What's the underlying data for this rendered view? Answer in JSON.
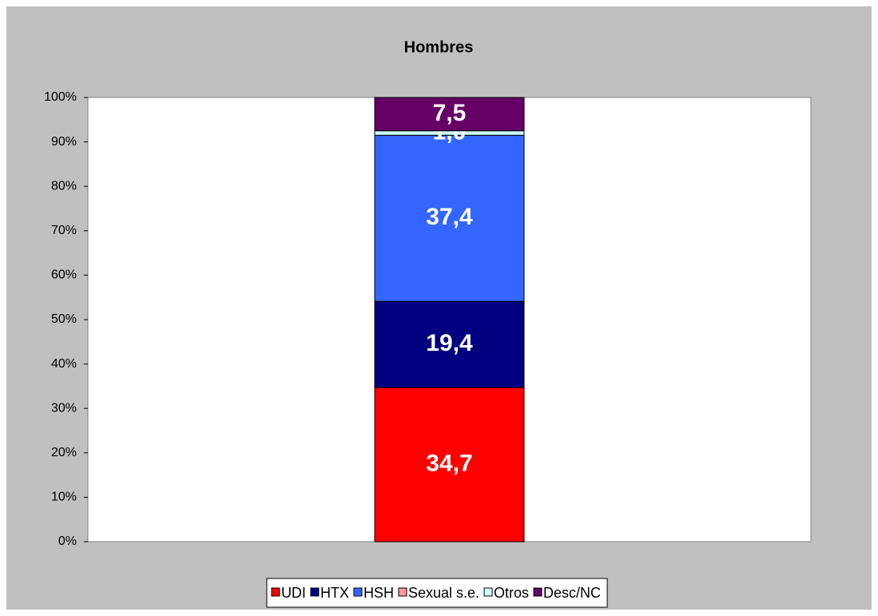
{
  "chart_data": {
    "type": "stacked_bar",
    "title": "Hombres",
    "categories": [
      null
    ],
    "series": [
      {
        "name": "UDI",
        "color": "#ff0000",
        "values": [
          34.7
        ],
        "value_labels": [
          "34,7"
        ]
      },
      {
        "name": "HTX",
        "color": "#000080",
        "values": [
          19.4
        ],
        "value_labels": [
          "19,4"
        ]
      },
      {
        "name": "HSH",
        "color": "#3366ff",
        "values": [
          37.4
        ],
        "value_labels": [
          "37,4"
        ]
      },
      {
        "name": "Sexual s.e.",
        "color": "#ff9999",
        "values": [
          0
        ],
        "value_labels": [
          null
        ]
      },
      {
        "name": "Otros",
        "color": "#ccffff",
        "values": [
          1.0
        ],
        "value_labels": [
          "1,0"
        ]
      },
      {
        "name": "Desc/NC",
        "color": "#660066",
        "values": [
          7.5
        ],
        "value_labels": [
          "7,5"
        ]
      }
    ],
    "ylim": [
      0,
      100
    ],
    "yticks": [
      {
        "value": 0,
        "label": "0%"
      },
      {
        "value": 10,
        "label": "10%"
      },
      {
        "value": 20,
        "label": "20%"
      },
      {
        "value": 30,
        "label": "30%"
      },
      {
        "value": 40,
        "label": "40%"
      },
      {
        "value": 50,
        "label": "50%"
      },
      {
        "value": 60,
        "label": "60%"
      },
      {
        "value": 70,
        "label": "70%"
      },
      {
        "value": 80,
        "label": "80%"
      },
      {
        "value": 90,
        "label": "90%"
      },
      {
        "value": 100,
        "label": "100%"
      }
    ],
    "grid": false,
    "legend": "bottom"
  }
}
